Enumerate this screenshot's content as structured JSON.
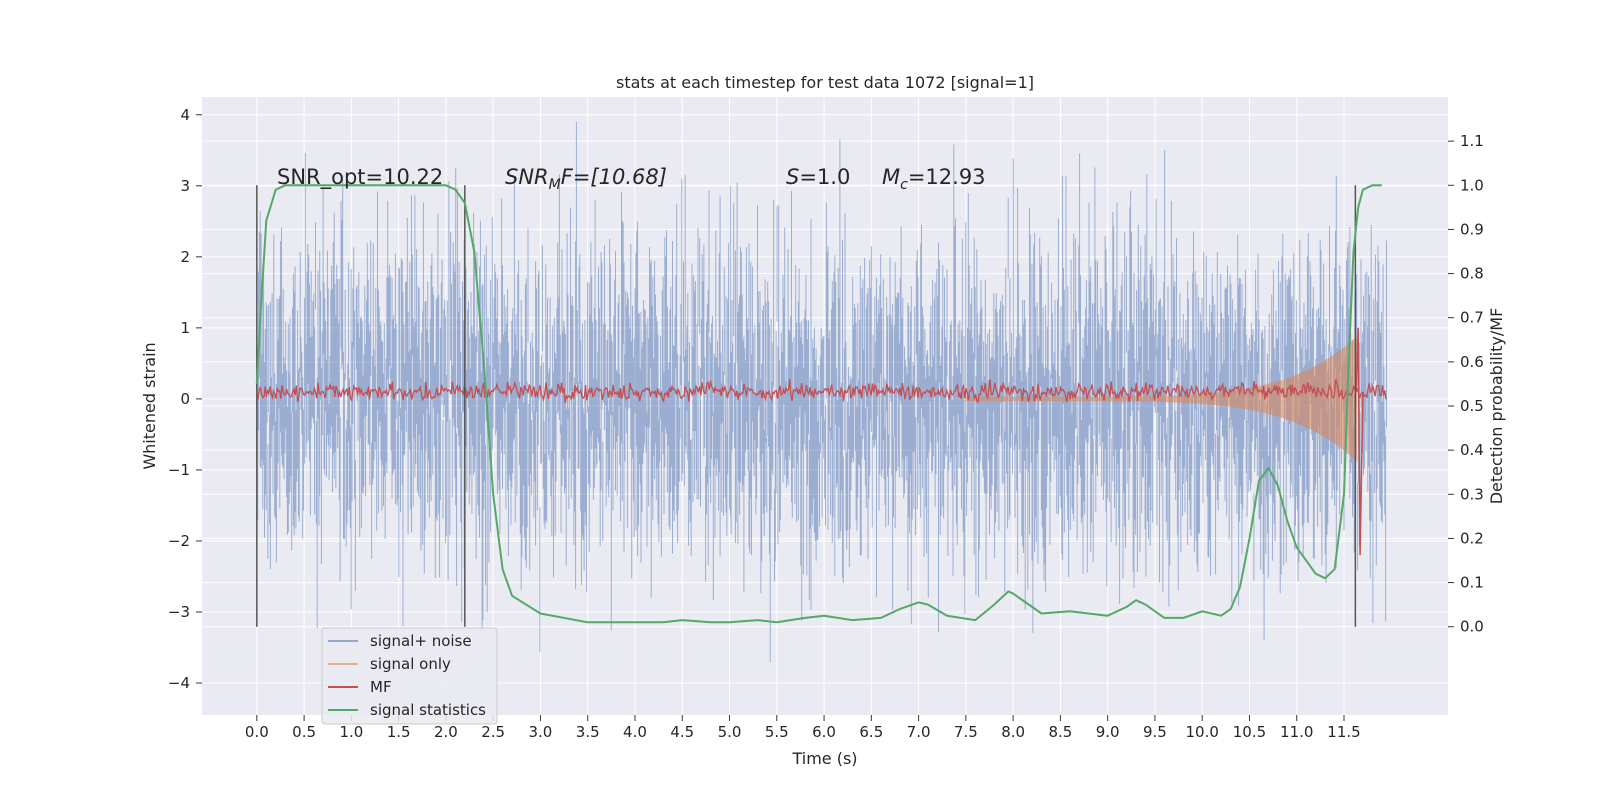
{
  "chart_data": {
    "type": "line",
    "title": "stats at each timestep for test data 1072 [signal=1]",
    "xlabel": "Time (s)",
    "ylabel_left": "Whitened strain",
    "ylabel_right": "Detection probability/MF",
    "x_ticks": [
      "0.0",
      "0.5",
      "1.0",
      "1.5",
      "2.0",
      "2.5",
      "3.0",
      "3.5",
      "4.0",
      "4.5",
      "5.0",
      "5.5",
      "6.0",
      "6.5",
      "7.0",
      "7.5",
      "8.0",
      "8.5",
      "9.0",
      "9.5",
      "10.0",
      "10.5",
      "11.0",
      "11.5"
    ],
    "y_left_ticks": [
      "4",
      "3",
      "2",
      "1",
      "0",
      "−1",
      "−2",
      "−3",
      "−4"
    ],
    "y_right_ticks": [
      "1.1",
      "1.0",
      "0.9",
      "0.8",
      "0.7",
      "0.6",
      "0.5",
      "0.4",
      "0.3",
      "0.2",
      "0.1",
      "0.0"
    ],
    "xlim": [
      -0.58,
      12.6
    ],
    "ylim_left": [
      -4.45,
      4.25
    ],
    "ylim_right": [
      -0.2,
      1.2
    ],
    "grid": true,
    "legend_placement": "bottom-left",
    "annotations": {
      "snr_opt": "SNR_opt=10.22",
      "snr_mf_base": "SNR",
      "snr_mf_sub": "M",
      "snr_mf_rest": "F=[10.68]",
      "s_sym": "S",
      "s_val": "=1.0",
      "mc_sym": "M",
      "mc_sub": "c",
      "mc_val": "=12.93"
    },
    "vertical_markers_x": [
      0.0,
      2.2,
      11.62
    ],
    "series": [
      {
        "name": "signal+ noise",
        "color": "#4c72b0",
        "alpha": 0.5,
        "axis": "left",
        "envelope_note": "dense noise roughly ±2 to ±4",
        "x_range": [
          0.0,
          11.95
        ]
      },
      {
        "name": "signal only",
        "color": "#dd8452",
        "axis": "left",
        "chirp": {
          "x_start": 7.5,
          "x_end": 11.65,
          "amp_start": 0.03,
          "amp_peak": 0.9
        }
      },
      {
        "name": "MF",
        "color": "#c44e52",
        "axis": "left",
        "baseline": 0.1,
        "peak": {
          "x": 11.65,
          "y": 1.0
        }
      },
      {
        "name": "signal statistics",
        "color": "#55a868",
        "axis": "right",
        "x": [
          0.0,
          0.05,
          0.1,
          0.2,
          0.3,
          0.6,
          1.0,
          1.5,
          2.0,
          2.1,
          2.2,
          2.3,
          2.4,
          2.5,
          2.6,
          2.7,
          3.0,
          3.5,
          4.0,
          4.3,
          4.5,
          4.8,
          5.0,
          5.3,
          5.5,
          5.8,
          6.0,
          6.3,
          6.6,
          6.8,
          7.0,
          7.1,
          7.3,
          7.6,
          7.8,
          7.95,
          8.0,
          8.3,
          8.6,
          9.0,
          9.2,
          9.3,
          9.4,
          9.6,
          9.8,
          10.0,
          10.2,
          10.3,
          10.4,
          10.5,
          10.6,
          10.7,
          10.8,
          10.9,
          11.0,
          11.2,
          11.3,
          11.4,
          11.5,
          11.55,
          11.6,
          11.65,
          11.7,
          11.8,
          11.9
        ],
        "y": [
          0.55,
          0.75,
          0.92,
          0.99,
          1.0,
          1.0,
          1.0,
          1.0,
          1.0,
          0.99,
          0.96,
          0.85,
          0.6,
          0.3,
          0.13,
          0.07,
          0.03,
          0.01,
          0.01,
          0.01,
          0.015,
          0.01,
          0.01,
          0.015,
          0.01,
          0.02,
          0.025,
          0.015,
          0.02,
          0.04,
          0.055,
          0.05,
          0.025,
          0.015,
          0.05,
          0.08,
          0.075,
          0.03,
          0.035,
          0.025,
          0.045,
          0.06,
          0.05,
          0.02,
          0.02,
          0.035,
          0.025,
          0.04,
          0.09,
          0.2,
          0.33,
          0.36,
          0.32,
          0.24,
          0.18,
          0.12,
          0.11,
          0.13,
          0.3,
          0.6,
          0.85,
          0.95,
          0.99,
          1.0,
          1.0
        ]
      }
    ]
  }
}
